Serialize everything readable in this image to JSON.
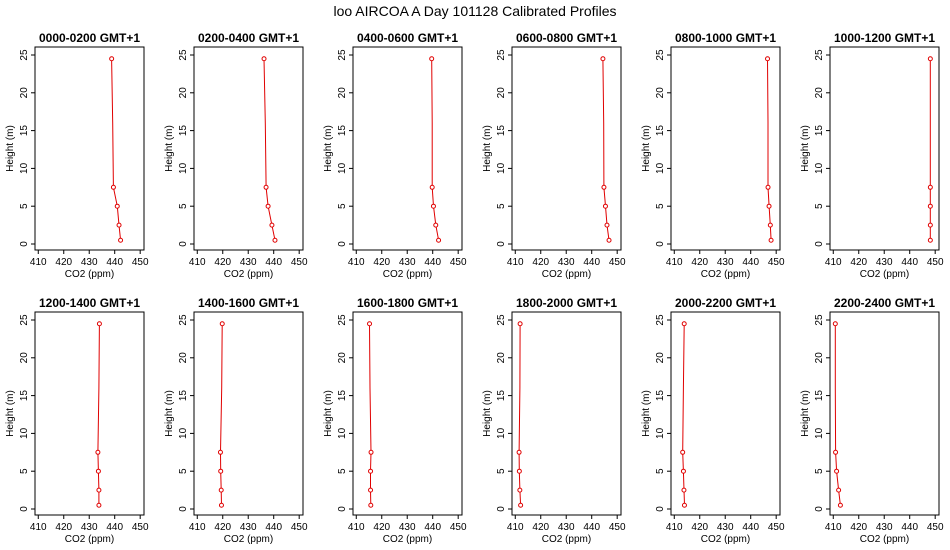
{
  "title": "loo AIRCOA A  Day 101128  Calibrated Profiles",
  "colors": {
    "series": "#e00000",
    "axes": "#000000",
    "background": "#ffffff"
  },
  "chart_data": [
    {
      "type": "line",
      "title": "0000-0200 GMT+1",
      "xlabel": "CO2 (ppm)",
      "ylabel": "Height (m)",
      "xlim": [
        410,
        450
      ],
      "ylim": [
        0,
        25
      ],
      "xticks": [
        410,
        420,
        430,
        440,
        450
      ],
      "yticks": [
        0,
        5,
        10,
        15,
        20,
        25
      ],
      "profile": [
        {
          "x": 442.3,
          "y": 0.5
        },
        {
          "x": 441.7,
          "y": 2.5
        },
        {
          "x": 441.0,
          "y": 5.0
        },
        {
          "x": 439.5,
          "y": 7.5
        },
        {
          "x": 439.2,
          "y": 16.0
        },
        {
          "x": 438.8,
          "y": 24.5
        }
      ],
      "markers_at": [
        0.5,
        2.5,
        5.0,
        7.5,
        24.5
      ]
    },
    {
      "type": "line",
      "title": "0200-0400 GMT+1",
      "xlabel": "CO2 (ppm)",
      "ylabel": "Height (m)",
      "xlim": [
        410,
        450
      ],
      "ylim": [
        0,
        25
      ],
      "xticks": [
        410,
        420,
        430,
        440,
        450
      ],
      "yticks": [
        0,
        5,
        10,
        15,
        20,
        25
      ],
      "profile": [
        {
          "x": 440.5,
          "y": 0.5
        },
        {
          "x": 439.3,
          "y": 2.5
        },
        {
          "x": 437.8,
          "y": 5.0
        },
        {
          "x": 437.0,
          "y": 7.5
        },
        {
          "x": 436.7,
          "y": 16.0
        },
        {
          "x": 436.2,
          "y": 24.5
        }
      ],
      "markers_at": [
        0.5,
        2.5,
        5.0,
        7.5,
        24.5
      ]
    },
    {
      "type": "line",
      "title": "0400-0600 GMT+1",
      "xlabel": "CO2 (ppm)",
      "ylabel": "Height (m)",
      "xlim": [
        410,
        450
      ],
      "ylim": [
        0,
        25
      ],
      "xticks": [
        410,
        420,
        430,
        440,
        450
      ],
      "yticks": [
        0,
        5,
        10,
        15,
        20,
        25
      ],
      "profile": [
        {
          "x": 442.3,
          "y": 0.5
        },
        {
          "x": 441.2,
          "y": 2.5
        },
        {
          "x": 440.3,
          "y": 5.0
        },
        {
          "x": 439.8,
          "y": 7.5
        },
        {
          "x": 439.8,
          "y": 16.0
        },
        {
          "x": 439.6,
          "y": 24.5
        }
      ],
      "markers_at": [
        0.5,
        2.5,
        5.0,
        7.5,
        24.5
      ]
    },
    {
      "type": "line",
      "title": "0600-0800 GMT+1",
      "xlabel": "CO2 (ppm)",
      "ylabel": "Height (m)",
      "xlim": [
        410,
        450
      ],
      "ylim": [
        0,
        25
      ],
      "xticks": [
        410,
        420,
        430,
        440,
        450
      ],
      "yticks": [
        0,
        5,
        10,
        15,
        20,
        25
      ],
      "profile": [
        {
          "x": 446.8,
          "y": 0.5
        },
        {
          "x": 446.0,
          "y": 2.5
        },
        {
          "x": 445.4,
          "y": 5.0
        },
        {
          "x": 444.8,
          "y": 7.5
        },
        {
          "x": 444.7,
          "y": 16.0
        },
        {
          "x": 444.4,
          "y": 24.5
        }
      ],
      "markers_at": [
        0.5,
        2.5,
        5.0,
        7.5,
        24.5
      ]
    },
    {
      "type": "line",
      "title": "0800-1000 GMT+1",
      "xlabel": "CO2 (ppm)",
      "ylabel": "Height (m)",
      "xlim": [
        410,
        450
      ],
      "ylim": [
        0,
        25
      ],
      "xticks": [
        410,
        420,
        430,
        440,
        450
      ],
      "yticks": [
        0,
        5,
        10,
        15,
        20,
        25
      ],
      "profile": [
        {
          "x": 448.0,
          "y": 0.5
        },
        {
          "x": 447.7,
          "y": 2.5
        },
        {
          "x": 447.2,
          "y": 5.0
        },
        {
          "x": 446.8,
          "y": 7.5
        },
        {
          "x": 446.8,
          "y": 16.0
        },
        {
          "x": 446.6,
          "y": 24.5
        }
      ],
      "markers_at": [
        0.5,
        2.5,
        5.0,
        7.5,
        24.5
      ]
    },
    {
      "type": "line",
      "title": "1000-1200 GMT+1",
      "xlabel": "CO2 (ppm)",
      "ylabel": "Height (m)",
      "xlim": [
        410,
        450
      ],
      "ylim": [
        0,
        25
      ],
      "xticks": [
        410,
        420,
        430,
        440,
        450
      ],
      "yticks": [
        0,
        5,
        10,
        15,
        20,
        25
      ],
      "profile": [
        {
          "x": 448.1,
          "y": 0.5
        },
        {
          "x": 448.1,
          "y": 2.5
        },
        {
          "x": 448.1,
          "y": 5.0
        },
        {
          "x": 448.1,
          "y": 7.5
        },
        {
          "x": 448.1,
          "y": 16.0
        },
        {
          "x": 448.1,
          "y": 24.5
        }
      ],
      "markers_at": [
        0.5,
        2.5,
        5.0,
        7.5,
        24.5
      ]
    },
    {
      "type": "line",
      "title": "1200-1400 GMT+1",
      "xlabel": "CO2 (ppm)",
      "ylabel": "Height (m)",
      "xlim": [
        410,
        450
      ],
      "ylim": [
        0,
        25
      ],
      "xticks": [
        410,
        420,
        430,
        440,
        450
      ],
      "yticks": [
        0,
        5,
        10,
        15,
        20,
        25
      ],
      "profile": [
        {
          "x": 433.8,
          "y": 0.5
        },
        {
          "x": 433.8,
          "y": 2.5
        },
        {
          "x": 433.6,
          "y": 5.0
        },
        {
          "x": 433.4,
          "y": 7.5
        },
        {
          "x": 433.8,
          "y": 16.0
        },
        {
          "x": 434.0,
          "y": 24.5
        }
      ],
      "markers_at": [
        0.5,
        2.5,
        5.0,
        7.5,
        24.5
      ]
    },
    {
      "type": "line",
      "title": "1400-1600 GMT+1",
      "xlabel": "CO2 (ppm)",
      "ylabel": "Height (m)",
      "xlim": [
        410,
        450
      ],
      "ylim": [
        0,
        25
      ],
      "xticks": [
        410,
        420,
        430,
        440,
        450
      ],
      "yticks": [
        0,
        5,
        10,
        15,
        20,
        25
      ],
      "profile": [
        {
          "x": 419.5,
          "y": 0.5
        },
        {
          "x": 419.4,
          "y": 2.5
        },
        {
          "x": 419.2,
          "y": 5.0
        },
        {
          "x": 419.1,
          "y": 7.5
        },
        {
          "x": 419.6,
          "y": 16.0
        },
        {
          "x": 419.8,
          "y": 24.5
        }
      ],
      "markers_at": [
        0.5,
        2.5,
        5.0,
        7.5,
        24.5
      ]
    },
    {
      "type": "line",
      "title": "1600-1800 GMT+1",
      "xlabel": "CO2 (ppm)",
      "ylabel": "Height (m)",
      "xlim": [
        410,
        450
      ],
      "ylim": [
        0,
        25
      ],
      "xticks": [
        410,
        420,
        430,
        440,
        450
      ],
      "yticks": [
        0,
        5,
        10,
        15,
        20,
        25
      ],
      "profile": [
        {
          "x": 415.7,
          "y": 0.5
        },
        {
          "x": 415.6,
          "y": 2.5
        },
        {
          "x": 415.6,
          "y": 5.0
        },
        {
          "x": 415.8,
          "y": 7.5
        },
        {
          "x": 415.4,
          "y": 16.0
        },
        {
          "x": 415.2,
          "y": 24.5
        }
      ],
      "markers_at": [
        0.5,
        2.5,
        5.0,
        7.5,
        24.5
      ]
    },
    {
      "type": "line",
      "title": "1800-2000 GMT+1",
      "xlabel": "CO2 (ppm)",
      "ylabel": "Height (m)",
      "xlim": [
        410,
        450
      ],
      "ylim": [
        0,
        25
      ],
      "xticks": [
        410,
        420,
        430,
        440,
        450
      ],
      "yticks": [
        0,
        5,
        10,
        15,
        20,
        25
      ],
      "profile": [
        {
          "x": 412.1,
          "y": 0.5
        },
        {
          "x": 411.8,
          "y": 2.5
        },
        {
          "x": 411.6,
          "y": 5.0
        },
        {
          "x": 411.5,
          "y": 7.5
        },
        {
          "x": 411.8,
          "y": 16.0
        },
        {
          "x": 411.9,
          "y": 24.5
        }
      ],
      "markers_at": [
        0.5,
        2.5,
        5.0,
        7.5,
        24.5
      ]
    },
    {
      "type": "line",
      "title": "2000-2200 GMT+1",
      "xlabel": "CO2 (ppm)",
      "ylabel": "Height (m)",
      "xlim": [
        410,
        450
      ],
      "ylim": [
        0,
        25
      ],
      "xticks": [
        410,
        420,
        430,
        440,
        450
      ],
      "yticks": [
        0,
        5,
        10,
        15,
        20,
        25
      ],
      "profile": [
        {
          "x": 414.0,
          "y": 0.5
        },
        {
          "x": 413.8,
          "y": 2.5
        },
        {
          "x": 413.6,
          "y": 5.0
        },
        {
          "x": 413.3,
          "y": 7.5
        },
        {
          "x": 413.6,
          "y": 16.0
        },
        {
          "x": 413.9,
          "y": 24.5
        }
      ],
      "markers_at": [
        0.5,
        2.5,
        5.0,
        7.5,
        24.5
      ]
    },
    {
      "type": "line",
      "title": "2200-2400 GMT+1",
      "xlabel": "CO2 (ppm)",
      "ylabel": "Height (m)",
      "xlim": [
        410,
        450
      ],
      "ylim": [
        0,
        25
      ],
      "xticks": [
        410,
        420,
        430,
        440,
        450
      ],
      "yticks": [
        0,
        5,
        10,
        15,
        20,
        25
      ],
      "profile": [
        {
          "x": 412.8,
          "y": 0.5
        },
        {
          "x": 412.1,
          "y": 2.5
        },
        {
          "x": 411.3,
          "y": 5.0
        },
        {
          "x": 410.9,
          "y": 7.5
        },
        {
          "x": 410.8,
          "y": 16.0
        },
        {
          "x": 410.8,
          "y": 24.5
        }
      ],
      "markers_at": [
        0.5,
        2.5,
        5.0,
        7.5,
        24.5
      ]
    }
  ]
}
